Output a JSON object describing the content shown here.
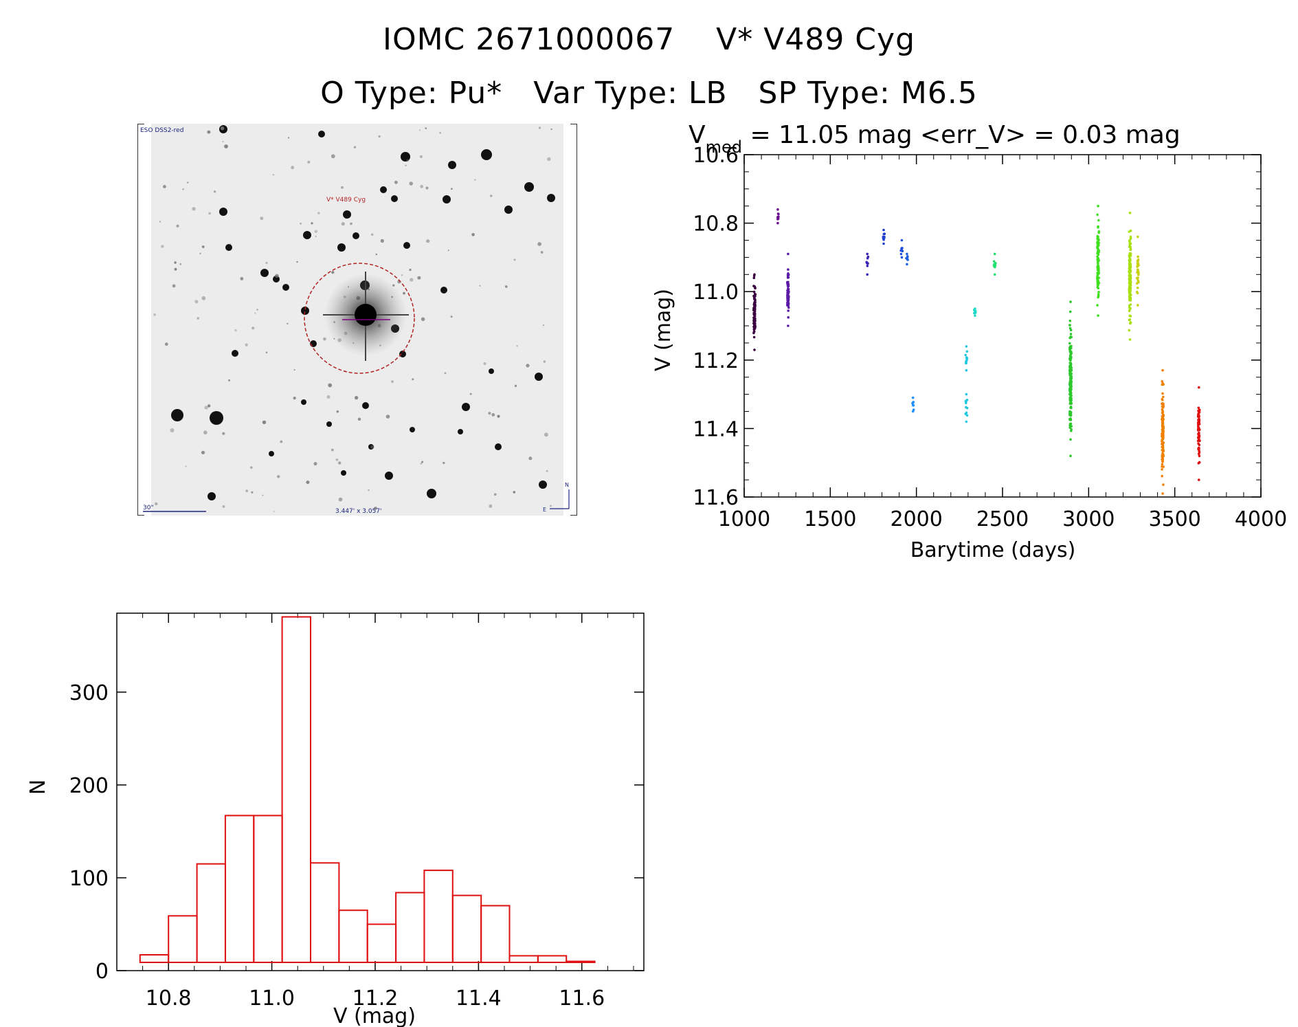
{
  "header": {
    "line1_id": "IOMC 2671000067",
    "line1_name": "V* V489 Cyg",
    "line2_otype": "O Type: Pu*",
    "line2_vartype": "Var Type: LB",
    "line2_sptype": "SP Type: M6.5"
  },
  "sky_image": {
    "survey_label": "ESO DSS2-red",
    "target_label": "V* V489 Cyg",
    "scale_label": "30\"",
    "fov_label": "3.447' x 3.057'",
    "compass_n": "N",
    "compass_e": "E",
    "colors": {
      "circle": "#b22222",
      "labels": "#1a237e",
      "target_label": "#b22222",
      "cross": "#800080"
    }
  },
  "chart_data": [
    {
      "type": "scatter",
      "title_prefix": "V",
      "title_sub": "med",
      "title_rest": " = 11.05 mag <err_V> = 0.03 mag",
      "xlabel": "Barytime (days)",
      "ylabel": "V (mag)",
      "xlim": [
        1000,
        4000
      ],
      "ylim": [
        11.6,
        10.6
      ],
      "y_inverted": true,
      "xticks": [
        1000,
        1500,
        2000,
        2500,
        3000,
        3500,
        4000
      ],
      "xtick_labels": [
        "1000",
        "1500",
        "2000",
        "2500",
        "3000",
        "3500",
        "4000"
      ],
      "yticks": [
        10.6,
        10.8,
        11.0,
        11.2,
        11.4,
        11.6
      ],
      "ytick_labels": [
        "10.6",
        "10.8",
        "11.0",
        "11.2",
        "11.4",
        "11.6"
      ],
      "groups": [
        {
          "x": 1060,
          "ymin": 10.95,
          "ymax": 11.17,
          "n": 90,
          "color": "#3a0040"
        },
        {
          "x": 1195,
          "ymin": 10.76,
          "ymax": 10.8,
          "n": 8,
          "color": "#6a0d91"
        },
        {
          "x": 1255,
          "ymin": 10.89,
          "ymax": 11.1,
          "n": 60,
          "color": "#5b1aa6"
        },
        {
          "x": 1715,
          "ymin": 10.89,
          "ymax": 10.95,
          "n": 8,
          "color": "#3b22b5"
        },
        {
          "x": 1810,
          "ymin": 10.82,
          "ymax": 10.86,
          "n": 8,
          "color": "#2240d0"
        },
        {
          "x": 1915,
          "ymin": 10.85,
          "ymax": 10.9,
          "n": 6,
          "color": "#2050e0"
        },
        {
          "x": 1945,
          "ymin": 10.89,
          "ymax": 10.92,
          "n": 5,
          "color": "#2060e0"
        },
        {
          "x": 1980,
          "ymin": 11.31,
          "ymax": 11.35,
          "n": 6,
          "color": "#1e90ff"
        },
        {
          "x": 2290,
          "ymin": 11.16,
          "ymax": 11.23,
          "n": 10,
          "color": "#20c8e0"
        },
        {
          "x": 2290,
          "ymin": 11.3,
          "ymax": 11.38,
          "n": 10,
          "color": "#20c8e0"
        },
        {
          "x": 2340,
          "ymin": 11.05,
          "ymax": 11.07,
          "n": 5,
          "color": "#20d8c8"
        },
        {
          "x": 2455,
          "ymin": 10.89,
          "ymax": 10.95,
          "n": 10,
          "color": "#20e070"
        },
        {
          "x": 2895,
          "ymin": 11.03,
          "ymax": 11.48,
          "n": 160,
          "color": "#2cc82c"
        },
        {
          "x": 3055,
          "ymin": 10.75,
          "ymax": 11.07,
          "n": 100,
          "color": "#40e020"
        },
        {
          "x": 3240,
          "ymin": 10.77,
          "ymax": 11.14,
          "n": 140,
          "color": "#a8e010"
        },
        {
          "x": 3285,
          "ymin": 10.84,
          "ymax": 11.04,
          "n": 30,
          "color": "#c8d010"
        },
        {
          "x": 3430,
          "ymin": 11.23,
          "ymax": 11.59,
          "n": 120,
          "color": "#f08000"
        },
        {
          "x": 3640,
          "ymin": 11.28,
          "ymax": 11.55,
          "n": 70,
          "color": "#e01010"
        }
      ]
    },
    {
      "type": "bar",
      "subtype": "histogram",
      "xlabel": "V (mag)",
      "ylabel": "N",
      "xlim": [
        10.7,
        11.72
      ],
      "ylim": [
        0,
        385
      ],
      "xticks": [
        10.8,
        11.0,
        11.2,
        11.4,
        11.6
      ],
      "xtick_labels": [
        "10.8",
        "11.0",
        "11.2",
        "11.4",
        "11.6"
      ],
      "yticks": [
        0,
        100,
        200,
        300
      ],
      "ytick_labels": [
        "0",
        "100",
        "200",
        "300"
      ],
      "bin_edges": [
        10.745,
        10.8,
        10.855,
        10.91,
        10.965,
        11.02,
        11.075,
        11.13,
        11.185,
        11.24,
        11.295,
        11.35,
        11.405,
        11.46,
        11.515,
        11.57,
        11.625
      ],
      "values": [
        17,
        59,
        115,
        167,
        167,
        381,
        116,
        65,
        50,
        84,
        108,
        81,
        70,
        16,
        16,
        10
      ],
      "color": "#e01010"
    }
  ]
}
